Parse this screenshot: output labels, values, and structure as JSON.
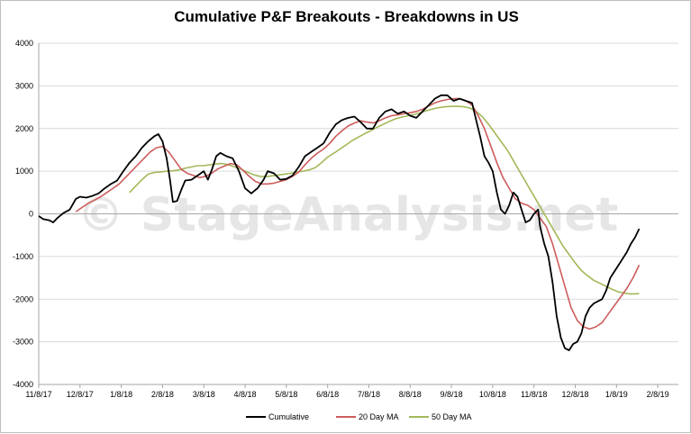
{
  "chart_data": {
    "type": "line",
    "title": "Cumulative P&F Breakouts - Breakdowns in US",
    "watermark": "© StageAnalysis.net",
    "xlabel": "",
    "ylabel": "",
    "ylim": [
      -4000,
      4000
    ],
    "yticks": [
      4000,
      3000,
      2000,
      1000,
      0,
      -1000,
      -2000,
      -3000,
      -4000
    ],
    "xlim": [
      0,
      15.5
    ],
    "xtick_labels": [
      "11/8/17",
      "12/8/17",
      "1/8/18",
      "2/8/18",
      "3/8/18",
      "4/8/18",
      "5/8/18",
      "6/8/18",
      "7/8/18",
      "8/8/18",
      "9/8/18",
      "10/8/18",
      "11/8/18",
      "12/8/18",
      "1/8/19",
      "2/8/19"
    ],
    "grid": true,
    "legend_position": "bottom",
    "series": [
      {
        "name": "Cumulative",
        "color": "#000000",
        "points": [
          [
            0.0,
            -50
          ],
          [
            0.1,
            -120
          ],
          [
            0.25,
            -150
          ],
          [
            0.35,
            -200
          ],
          [
            0.45,
            -100
          ],
          [
            0.6,
            20
          ],
          [
            0.75,
            100
          ],
          [
            0.9,
            350
          ],
          [
            1.0,
            400
          ],
          [
            1.15,
            380
          ],
          [
            1.3,
            420
          ],
          [
            1.45,
            480
          ],
          [
            1.6,
            600
          ],
          [
            1.75,
            700
          ],
          [
            1.9,
            780
          ],
          [
            2.05,
            1000
          ],
          [
            2.2,
            1200
          ],
          [
            2.35,
            1350
          ],
          [
            2.5,
            1550
          ],
          [
            2.65,
            1700
          ],
          [
            2.8,
            1820
          ],
          [
            2.9,
            1870
          ],
          [
            3.0,
            1700
          ],
          [
            3.1,
            1300
          ],
          [
            3.18,
            800
          ],
          [
            3.25,
            280
          ],
          [
            3.35,
            300
          ],
          [
            3.45,
            550
          ],
          [
            3.55,
            780
          ],
          [
            3.7,
            800
          ],
          [
            3.85,
            900
          ],
          [
            4.0,
            1000
          ],
          [
            4.1,
            800
          ],
          [
            4.2,
            1050
          ],
          [
            4.3,
            1350
          ],
          [
            4.4,
            1430
          ],
          [
            4.55,
            1350
          ],
          [
            4.7,
            1300
          ],
          [
            4.85,
            1000
          ],
          [
            5.0,
            600
          ],
          [
            5.15,
            480
          ],
          [
            5.3,
            600
          ],
          [
            5.45,
            800
          ],
          [
            5.55,
            1000
          ],
          [
            5.7,
            950
          ],
          [
            5.85,
            800
          ],
          [
            6.0,
            820
          ],
          [
            6.15,
            900
          ],
          [
            6.3,
            1100
          ],
          [
            6.45,
            1350
          ],
          [
            6.6,
            1450
          ],
          [
            6.75,
            1550
          ],
          [
            6.9,
            1650
          ],
          [
            7.05,
            1900
          ],
          [
            7.2,
            2100
          ],
          [
            7.35,
            2200
          ],
          [
            7.5,
            2250
          ],
          [
            7.65,
            2280
          ],
          [
            7.8,
            2150
          ],
          [
            7.95,
            2000
          ],
          [
            8.1,
            2000
          ],
          [
            8.25,
            2250
          ],
          [
            8.4,
            2400
          ],
          [
            8.55,
            2450
          ],
          [
            8.7,
            2350
          ],
          [
            8.85,
            2400
          ],
          [
            9.0,
            2300
          ],
          [
            9.15,
            2250
          ],
          [
            9.3,
            2400
          ],
          [
            9.45,
            2550
          ],
          [
            9.6,
            2700
          ],
          [
            9.75,
            2780
          ],
          [
            9.9,
            2780
          ],
          [
            10.05,
            2650
          ],
          [
            10.2,
            2700
          ],
          [
            10.35,
            2650
          ],
          [
            10.5,
            2600
          ],
          [
            10.6,
            2200
          ],
          [
            10.7,
            1800
          ],
          [
            10.8,
            1350
          ],
          [
            10.9,
            1200
          ],
          [
            11.0,
            1000
          ],
          [
            11.1,
            500
          ],
          [
            11.2,
            100
          ],
          [
            11.3,
            0
          ],
          [
            11.4,
            200
          ],
          [
            11.5,
            500
          ],
          [
            11.6,
            400
          ],
          [
            11.7,
            100
          ],
          [
            11.8,
            -200
          ],
          [
            11.9,
            -150
          ],
          [
            12.0,
            0
          ],
          [
            12.1,
            100
          ],
          [
            12.15,
            -300
          ],
          [
            12.25,
            -700
          ],
          [
            12.35,
            -1000
          ],
          [
            12.45,
            -1600
          ],
          [
            12.55,
            -2400
          ],
          [
            12.65,
            -2900
          ],
          [
            12.75,
            -3150
          ],
          [
            12.85,
            -3200
          ],
          [
            12.95,
            -3050
          ],
          [
            13.05,
            -3000
          ],
          [
            13.15,
            -2800
          ],
          [
            13.25,
            -2400
          ],
          [
            13.35,
            -2200
          ],
          [
            13.45,
            -2100
          ],
          [
            13.55,
            -2050
          ],
          [
            13.65,
            -2000
          ],
          [
            13.75,
            -1800
          ],
          [
            13.85,
            -1500
          ],
          [
            13.95,
            -1350
          ],
          [
            14.05,
            -1200
          ],
          [
            14.15,
            -1050
          ],
          [
            14.25,
            -900
          ],
          [
            14.35,
            -700
          ],
          [
            14.45,
            -550
          ],
          [
            14.55,
            -350
          ]
        ]
      },
      {
        "name": "20 Day MA",
        "color": "#cd5c5c",
        "points": [
          [
            0.9,
            50
          ],
          [
            1.05,
            150
          ],
          [
            1.2,
            250
          ],
          [
            1.35,
            320
          ],
          [
            1.5,
            400
          ],
          [
            1.65,
            500
          ],
          [
            1.8,
            600
          ],
          [
            1.95,
            700
          ],
          [
            2.1,
            850
          ],
          [
            2.25,
            1000
          ],
          [
            2.4,
            1150
          ],
          [
            2.55,
            1300
          ],
          [
            2.7,
            1450
          ],
          [
            2.85,
            1550
          ],
          [
            3.0,
            1580
          ],
          [
            3.15,
            1450
          ],
          [
            3.3,
            1250
          ],
          [
            3.45,
            1050
          ],
          [
            3.6,
            950
          ],
          [
            3.75,
            900
          ],
          [
            3.9,
            850
          ],
          [
            4.05,
            880
          ],
          [
            4.2,
            960
          ],
          [
            4.35,
            1060
          ],
          [
            4.5,
            1120
          ],
          [
            4.65,
            1180
          ],
          [
            4.8,
            1150
          ],
          [
            4.95,
            1020
          ],
          [
            5.1,
            880
          ],
          [
            5.25,
            760
          ],
          [
            5.4,
            700
          ],
          [
            5.55,
            700
          ],
          [
            5.7,
            720
          ],
          [
            5.85,
            760
          ],
          [
            6.0,
            800
          ],
          [
            6.15,
            880
          ],
          [
            6.3,
            980
          ],
          [
            6.45,
            1150
          ],
          [
            6.6,
            1300
          ],
          [
            6.75,
            1420
          ],
          [
            6.9,
            1520
          ],
          [
            7.05,
            1650
          ],
          [
            7.2,
            1820
          ],
          [
            7.35,
            1950
          ],
          [
            7.5,
            2060
          ],
          [
            7.65,
            2130
          ],
          [
            7.8,
            2180
          ],
          [
            7.95,
            2150
          ],
          [
            8.1,
            2130
          ],
          [
            8.25,
            2180
          ],
          [
            8.4,
            2250
          ],
          [
            8.55,
            2300
          ],
          [
            8.7,
            2320
          ],
          [
            8.85,
            2350
          ],
          [
            9.0,
            2370
          ],
          [
            9.15,
            2400
          ],
          [
            9.3,
            2450
          ],
          [
            9.45,
            2530
          ],
          [
            9.6,
            2600
          ],
          [
            9.75,
            2650
          ],
          [
            9.9,
            2680
          ],
          [
            10.05,
            2700
          ],
          [
            10.2,
            2700
          ],
          [
            10.35,
            2650
          ],
          [
            10.5,
            2550
          ],
          [
            10.65,
            2300
          ],
          [
            10.8,
            2000
          ],
          [
            10.95,
            1600
          ],
          [
            11.1,
            1200
          ],
          [
            11.25,
            850
          ],
          [
            11.4,
            600
          ],
          [
            11.55,
            350
          ],
          [
            11.7,
            250
          ],
          [
            11.85,
            200
          ],
          [
            12.0,
            100
          ],
          [
            12.15,
            -100
          ],
          [
            12.3,
            -300
          ],
          [
            12.45,
            -700
          ],
          [
            12.6,
            -1200
          ],
          [
            12.75,
            -1700
          ],
          [
            12.9,
            -2200
          ],
          [
            13.05,
            -2500
          ],
          [
            13.2,
            -2650
          ],
          [
            13.35,
            -2700
          ],
          [
            13.5,
            -2650
          ],
          [
            13.65,
            -2550
          ],
          [
            13.8,
            -2350
          ],
          [
            13.95,
            -2150
          ],
          [
            14.1,
            -1950
          ],
          [
            14.25,
            -1750
          ],
          [
            14.4,
            -1500
          ],
          [
            14.55,
            -1200
          ]
        ]
      },
      {
        "name": "50 Day MA",
        "color": "#a3b95a",
        "points": [
          [
            2.2,
            500
          ],
          [
            2.35,
            650
          ],
          [
            2.5,
            800
          ],
          [
            2.65,
            930
          ],
          [
            2.8,
            970
          ],
          [
            2.95,
            980
          ],
          [
            3.1,
            1000
          ],
          [
            3.25,
            1010
          ],
          [
            3.4,
            1030
          ],
          [
            3.55,
            1070
          ],
          [
            3.7,
            1100
          ],
          [
            3.85,
            1130
          ],
          [
            4.0,
            1130
          ],
          [
            4.15,
            1150
          ],
          [
            4.3,
            1170
          ],
          [
            4.45,
            1180
          ],
          [
            4.6,
            1150
          ],
          [
            4.75,
            1100
          ],
          [
            4.9,
            1050
          ],
          [
            5.05,
            980
          ],
          [
            5.2,
            920
          ],
          [
            5.35,
            880
          ],
          [
            5.5,
            870
          ],
          [
            5.65,
            890
          ],
          [
            5.8,
            910
          ],
          [
            5.95,
            930
          ],
          [
            6.1,
            950
          ],
          [
            6.25,
            980
          ],
          [
            6.4,
            1000
          ],
          [
            6.55,
            1030
          ],
          [
            6.7,
            1080
          ],
          [
            6.85,
            1200
          ],
          [
            7.0,
            1330
          ],
          [
            7.15,
            1420
          ],
          [
            7.3,
            1520
          ],
          [
            7.45,
            1620
          ],
          [
            7.6,
            1720
          ],
          [
            7.75,
            1800
          ],
          [
            7.9,
            1880
          ],
          [
            8.05,
            1950
          ],
          [
            8.2,
            2030
          ],
          [
            8.35,
            2100
          ],
          [
            8.5,
            2170
          ],
          [
            8.65,
            2230
          ],
          [
            8.8,
            2270
          ],
          [
            8.95,
            2300
          ],
          [
            9.1,
            2330
          ],
          [
            9.25,
            2370
          ],
          [
            9.4,
            2420
          ],
          [
            9.55,
            2460
          ],
          [
            9.7,
            2490
          ],
          [
            9.85,
            2510
          ],
          [
            10.0,
            2520
          ],
          [
            10.15,
            2520
          ],
          [
            10.3,
            2510
          ],
          [
            10.45,
            2480
          ],
          [
            10.6,
            2400
          ],
          [
            10.75,
            2280
          ],
          [
            10.9,
            2100
          ],
          [
            11.05,
            1900
          ],
          [
            11.2,
            1700
          ],
          [
            11.35,
            1500
          ],
          [
            11.5,
            1250
          ],
          [
            11.65,
            1000
          ],
          [
            11.8,
            750
          ],
          [
            11.95,
            500
          ],
          [
            12.1,
            250
          ],
          [
            12.25,
            0
          ],
          [
            12.4,
            -250
          ],
          [
            12.55,
            -500
          ],
          [
            12.7,
            -750
          ],
          [
            12.85,
            -950
          ],
          [
            13.0,
            -1150
          ],
          [
            13.15,
            -1330
          ],
          [
            13.3,
            -1450
          ],
          [
            13.45,
            -1560
          ],
          [
            13.6,
            -1630
          ],
          [
            13.75,
            -1700
          ],
          [
            13.9,
            -1770
          ],
          [
            14.05,
            -1830
          ],
          [
            14.2,
            -1860
          ],
          [
            14.35,
            -1880
          ],
          [
            14.55,
            -1870
          ]
        ]
      }
    ]
  }
}
